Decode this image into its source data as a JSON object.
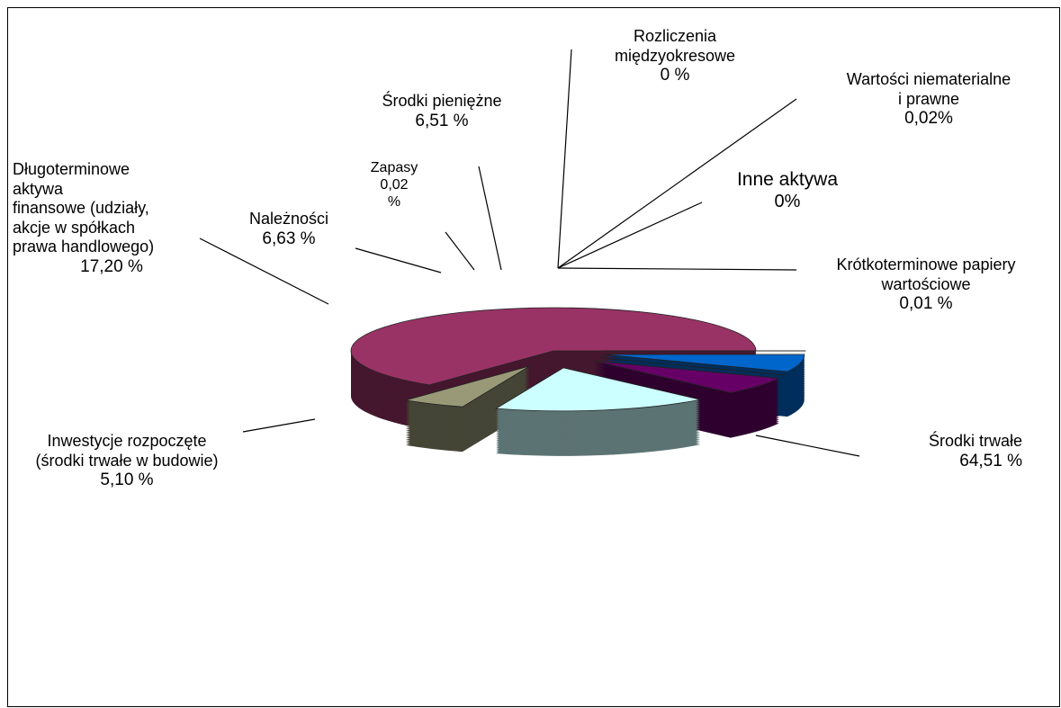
{
  "chart_data": {
    "type": "pie",
    "style": "3d-exploded",
    "slices": [
      {
        "label": "Środki trwałe",
        "value": 64.51,
        "value_text": "64,51 %",
        "color": "#993366"
      },
      {
        "label": "Inwestycje rozpoczęte\n(środki trwałe w budowie)",
        "value": 5.1,
        "value_text": "5,10 %",
        "color": "#999977"
      },
      {
        "label": "Długoterminowe\naktywa\nfinansowe (udziały,\nakcje w spółkach\nprawa handlowego)",
        "value": 17.2,
        "value_text": "17,20 %",
        "color": "#ccffff"
      },
      {
        "label": "Należności",
        "value": 6.63,
        "value_text": "6,63 %",
        "color": "#660066"
      },
      {
        "label": "Zapasy\n0,02\n%",
        "value": 0.02,
        "value_text": "",
        "color": "#ff8080"
      },
      {
        "label": "Środki pieniężne",
        "value": 6.51,
        "value_text": "6,51 %",
        "color": "#0066cc"
      },
      {
        "label": "Rozliczenia\nmiędzyokresowe",
        "value": 0,
        "value_text": "0 %",
        "color": "#ccccff"
      },
      {
        "label": "Wartości niematerialne\ni  prawne",
        "value": 0.02,
        "value_text": "0,02%",
        "color": "#000080"
      },
      {
        "label": "Inne aktywa",
        "value": 0,
        "value_text": "0%",
        "color": "#ff00ff"
      },
      {
        "label": "Krótkoterminowe  papiery\nwartościowe",
        "value": 0.01,
        "value_text": "0,01 %",
        "color": "#ffff00"
      }
    ]
  }
}
